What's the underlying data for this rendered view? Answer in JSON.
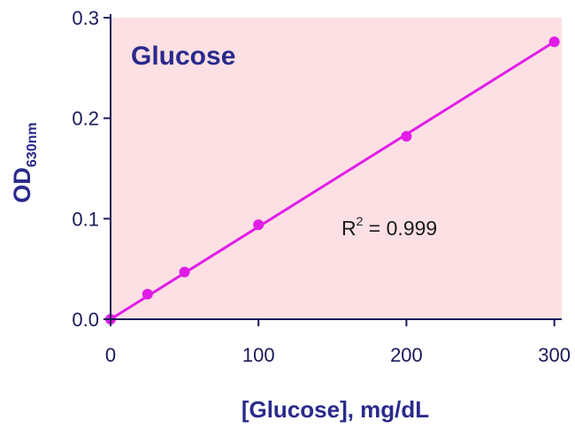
{
  "chart_data": {
    "type": "scatter",
    "title": "Glucose",
    "xlabel": "[Glucose], mg/dL",
    "ylabel": {
      "main": "OD",
      "subscript": "630nm"
    },
    "annotation": {
      "prefix": "R",
      "superscript": "2",
      "suffix": " = 0.999"
    },
    "xlim": [
      0,
      300
    ],
    "ylim": [
      0,
      0.3
    ],
    "x_ticks": [
      "0",
      "100",
      "200",
      "300"
    ],
    "y_ticks": [
      "0.0",
      "0.1",
      "0.2",
      "0.3"
    ],
    "grid": false,
    "series": [
      {
        "x": [
          0,
          25,
          50,
          100,
          200,
          300
        ],
        "y": [
          0.0,
          0.025,
          0.047,
          0.094,
          0.182,
          0.276
        ]
      }
    ],
    "fit_line": {
      "x": [
        0,
        300
      ],
      "y": [
        0.0,
        0.276
      ]
    },
    "colors": {
      "plot_background": "#fde0e3",
      "series": "#e21ce8",
      "text": "#2a2a8c",
      "axis": "#1a1a5a"
    }
  }
}
